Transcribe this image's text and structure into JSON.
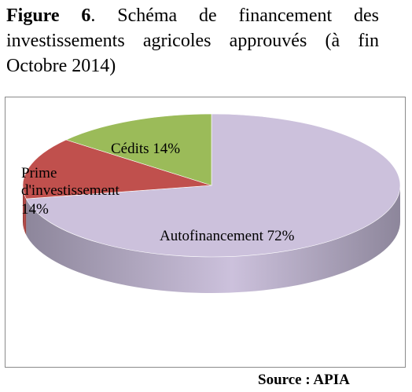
{
  "caption": {
    "label": "Figure 6",
    "text": ". Schéma de financement des investissements agricoles approuvés (à fin Octobre 2014)"
  },
  "chart_data": {
    "type": "pie",
    "style": "3d",
    "slices": [
      {
        "name": "Autofinancement",
        "value": 72,
        "label": "Autofinancement   72%",
        "color": "#ccc1dc",
        "side_color": "#8d869b"
      },
      {
        "name": "Prime d'investissement",
        "value": 14,
        "label_lines": [
          "Prime",
          "d'investissement",
          "14%"
        ],
        "color": "#c0504d",
        "side_color": "#8a3836"
      },
      {
        "name": "Cédits",
        "value": 14,
        "label": "Cédits  14%",
        "color": "#9bbb59",
        "side_color": "#6e8540"
      }
    ]
  },
  "source": "Source : APIA"
}
